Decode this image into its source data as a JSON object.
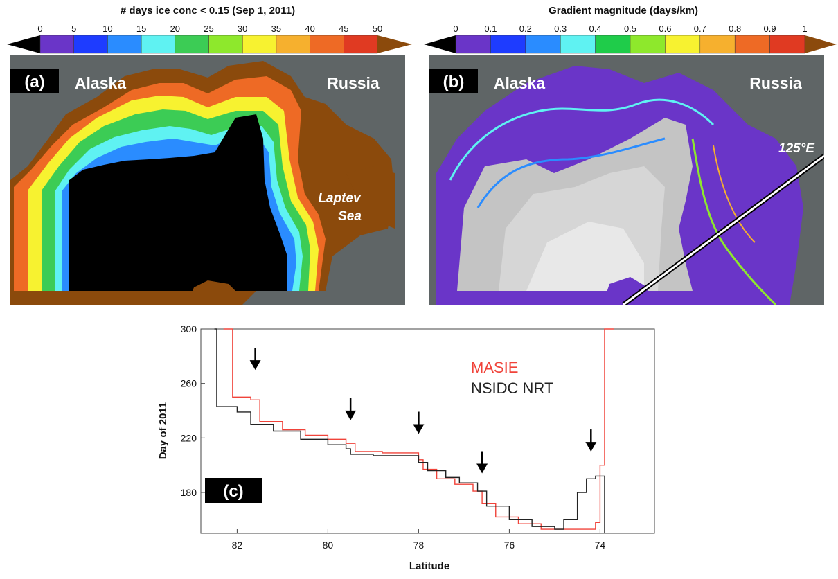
{
  "panel_a": {
    "colorbar_title": "# days ice conc < 0.15 (Sep 1, 2011)",
    "ticks": [
      "0",
      "5",
      "10",
      "15",
      "20",
      "25",
      "30",
      "35",
      "40",
      "45",
      "50"
    ],
    "colors": [
      "#6a35c8",
      "#1e3cff",
      "#2a8cff",
      "#5ff2f2",
      "#3ccc55",
      "#8ee82c",
      "#f7f230",
      "#f6b02e",
      "#ee6a25",
      "#e03a22"
    ],
    "tag": "(a)",
    "label_left": "Alaska",
    "label_right": "Russia",
    "label_sea_1": "Laptev",
    "label_sea_2": "Sea"
  },
  "panel_b": {
    "colorbar_title": "Gradient magnitude (days/km)",
    "ticks": [
      "0",
      "0.1",
      "0.2",
      "0.3",
      "0.4",
      "0.5",
      "0.6",
      "0.7",
      "0.8",
      "0.9",
      "1"
    ],
    "colors": [
      "#6a35c8",
      "#1e3cff",
      "#2a8cff",
      "#5ff2f2",
      "#1fcc4a",
      "#8ee82c",
      "#f7f230",
      "#f6b02e",
      "#ee6a25",
      "#e03a22"
    ],
    "tag": "(b)",
    "label_left": "Alaska",
    "label_right": "Russia",
    "transect_label": "125°E"
  },
  "colors": {
    "land": "#5f6566",
    "brown": "#8b4a0c",
    "ice_black": "#000000",
    "masie": "#f0433a",
    "nsidc": "#222222"
  },
  "chart_data": {
    "type": "line",
    "tag": "(c)",
    "xlabel": "Latitude",
    "ylabel": "Day of 2011",
    "xlim": [
      82.8,
      72.8
    ],
    "ylim": [
      150,
      300
    ],
    "xticks": [
      82,
      80,
      78,
      76,
      74
    ],
    "yticks": [
      180,
      220,
      260,
      300
    ],
    "legend_position": "top-right",
    "series": [
      {
        "name": "MASIE",
        "color": "#f0433a",
        "points": [
          [
            82.3,
            300
          ],
          [
            82.1,
            300
          ],
          [
            82.1,
            250
          ],
          [
            81.7,
            248
          ],
          [
            81.5,
            232
          ],
          [
            81.0,
            226
          ],
          [
            80.5,
            222
          ],
          [
            80.0,
            219
          ],
          [
            79.6,
            216
          ],
          [
            79.4,
            210
          ],
          [
            78.8,
            209
          ],
          [
            78.3,
            209
          ],
          [
            78.0,
            204
          ],
          [
            77.9,
            197
          ],
          [
            77.6,
            190
          ],
          [
            77.2,
            186
          ],
          [
            76.8,
            181
          ],
          [
            76.6,
            172
          ],
          [
            76.3,
            162
          ],
          [
            75.8,
            157
          ],
          [
            75.3,
            153
          ],
          [
            74.9,
            153
          ],
          [
            74.5,
            153
          ],
          [
            74.2,
            153
          ],
          [
            74.1,
            158
          ],
          [
            74.0,
            200
          ],
          [
            73.9,
            200
          ],
          [
            73.9,
            300
          ],
          [
            73.7,
            300
          ]
        ]
      },
      {
        "name": "NSIDC NRT",
        "color": "#222222",
        "points": [
          [
            82.5,
            300
          ],
          [
            82.45,
            243
          ],
          [
            82.0,
            239
          ],
          [
            81.7,
            230
          ],
          [
            81.2,
            225
          ],
          [
            80.6,
            219
          ],
          [
            80.0,
            215
          ],
          [
            79.6,
            212
          ],
          [
            79.5,
            208
          ],
          [
            79.0,
            207
          ],
          [
            78.5,
            207
          ],
          [
            78.2,
            207
          ],
          [
            78.0,
            202
          ],
          [
            77.8,
            196
          ],
          [
            77.4,
            191
          ],
          [
            77.1,
            187
          ],
          [
            76.7,
            181
          ],
          [
            76.5,
            170
          ],
          [
            76.0,
            160
          ],
          [
            75.5,
            155
          ],
          [
            75.0,
            153
          ],
          [
            74.8,
            160
          ],
          [
            74.5,
            180
          ],
          [
            74.3,
            190
          ],
          [
            74.1,
            192
          ],
          [
            73.9,
            185
          ],
          [
            73.9,
            150
          ]
        ]
      }
    ],
    "arrows": [
      {
        "lat": 81.6,
        "day": 272
      },
      {
        "lat": 79.5,
        "day": 235
      },
      {
        "lat": 78.0,
        "day": 225
      },
      {
        "lat": 76.6,
        "day": 196
      },
      {
        "lat": 74.2,
        "day": 212
      }
    ]
  }
}
